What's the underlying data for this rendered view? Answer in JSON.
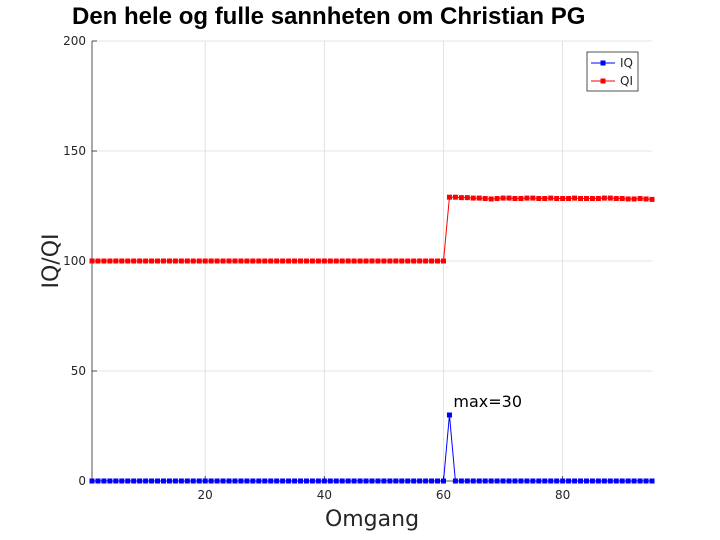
{
  "chart_data": {
    "type": "line",
    "title": "Den hele og fulle sannheten om Christian PG",
    "xlabel": "Omgang",
    "ylabel": "IQ/QI",
    "xlim": [
      1,
      95
    ],
    "ylim": [
      0,
      200
    ],
    "xticks": [
      20,
      40,
      60,
      80
    ],
    "yticks": [
      0,
      50,
      100,
      150,
      200
    ],
    "grid": true,
    "legend": "top-right",
    "series": [
      {
        "name": "IQ",
        "color": "#0000ff",
        "marker": "square",
        "values": [
          0,
          0,
          0,
          0,
          0,
          0,
          0,
          0,
          0,
          0,
          0,
          0,
          0,
          0,
          0,
          0,
          0,
          0,
          0,
          0,
          0,
          0,
          0,
          0,
          0,
          0,
          0,
          0,
          0,
          0,
          0,
          0,
          0,
          0,
          0,
          0,
          0,
          0,
          0,
          0,
          0,
          0,
          0,
          0,
          0,
          0,
          0,
          0,
          0,
          0,
          0,
          0,
          0,
          0,
          0,
          0,
          0,
          0,
          0,
          0,
          30,
          0,
          0,
          0,
          0,
          0,
          0,
          0,
          0,
          0,
          0,
          0,
          0,
          0,
          0,
          0,
          0,
          0,
          0,
          0,
          0,
          0,
          0,
          0,
          0,
          0,
          0,
          0,
          0,
          0,
          0,
          0,
          0,
          0,
          0
        ]
      },
      {
        "name": "QI",
        "color": "#ff0000",
        "marker": "square",
        "values": [
          100,
          100,
          100,
          100,
          100,
          100,
          100,
          100,
          100,
          100,
          100,
          100,
          100,
          100,
          100,
          100,
          100,
          100,
          100,
          100,
          100,
          100,
          100,
          100,
          100,
          100,
          100,
          100,
          100,
          100,
          100,
          100,
          100,
          100,
          100,
          100,
          100,
          100,
          100,
          100,
          100,
          100,
          100,
          100,
          100,
          100,
          100,
          100,
          100,
          100,
          100,
          100,
          100,
          100,
          100,
          100,
          100,
          100,
          100,
          100,
          129,
          129,
          128.8,
          128.8,
          128.6,
          128.6,
          128.4,
          128.2,
          128.4,
          128.6,
          128.6,
          128.4,
          128.4,
          128.6,
          128.6,
          128.4,
          128.4,
          128.6,
          128.4,
          128.4,
          128.4,
          128.6,
          128.4,
          128.4,
          128.4,
          128.4,
          128.6,
          128.6,
          128.4,
          128.4,
          128.2,
          128.2,
          128.4,
          128.2,
          128
        ]
      }
    ],
    "annotations": [
      {
        "text": "max=30",
        "x": 62,
        "y": 36
      }
    ]
  }
}
